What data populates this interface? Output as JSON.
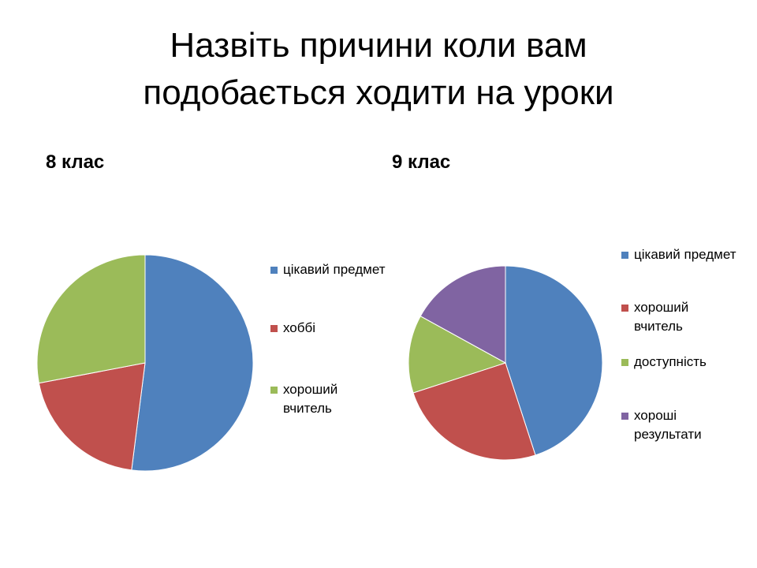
{
  "title": {
    "line1": "Назвіть причини коли вам",
    "line2": "подобається ходити на уроки"
  },
  "colors": {
    "blue": "#4F81BD",
    "red": "#C0504D",
    "green": "#9BBB59",
    "purple": "#8064A2"
  },
  "chart_data": [
    {
      "type": "pie",
      "title": "8 клас",
      "categories": [
        "цікавий предмет",
        "хоббі",
        "хороший вчитель"
      ],
      "values": [
        52,
        20,
        28
      ],
      "colors": [
        "#4F81BD",
        "#C0504D",
        "#9BBB59"
      ],
      "legend": "right"
    },
    {
      "type": "pie",
      "title": "9 клас",
      "categories": [
        "цікавий предмет",
        "хороший вчитель",
        "доступність",
        "хороші результати"
      ],
      "values": [
        45,
        25,
        13,
        17
      ],
      "colors": [
        "#4F81BD",
        "#C0504D",
        "#9BBB59",
        "#8064A2"
      ],
      "legend": "right"
    }
  ]
}
